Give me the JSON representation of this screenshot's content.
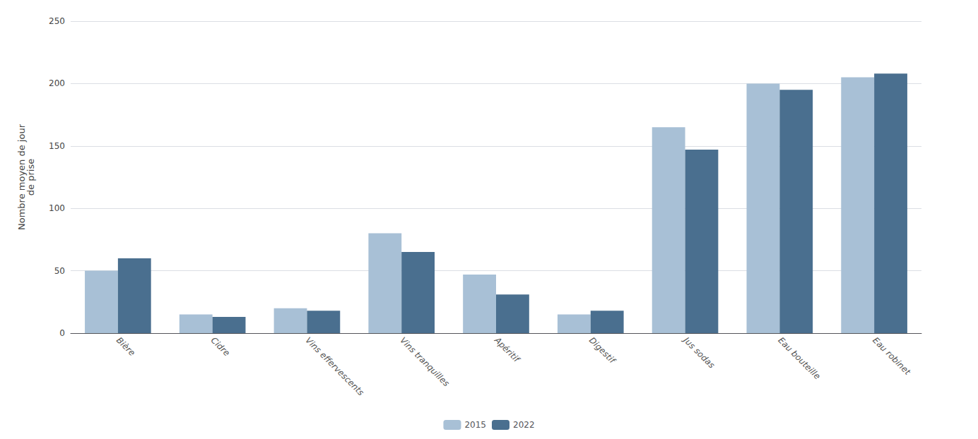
{
  "chart_data": {
    "type": "bar",
    "categories": [
      "Bière",
      "Cidre",
      "Vins effervescents",
      "Vins tranquilles",
      "Apéritif",
      "Digestif",
      "Jus sodas",
      "Eau bouteille",
      "Eau robinet"
    ],
    "series": [
      {
        "name": "2015",
        "color": "#a8c0d6",
        "values": [
          50,
          15,
          20,
          80,
          47,
          15,
          165,
          200,
          205
        ]
      },
      {
        "name": "2022",
        "color": "#4a6f8f",
        "values": [
          60,
          13,
          18,
          65,
          31,
          18,
          147,
          195,
          208
        ]
      }
    ],
    "ylabel": "Nombre moyen de jour\nde prise",
    "ylim": [
      0,
      250
    ],
    "yticks": [
      0,
      50,
      100,
      150,
      200,
      250
    ],
    "grid": true,
    "legend": "bottom"
  }
}
